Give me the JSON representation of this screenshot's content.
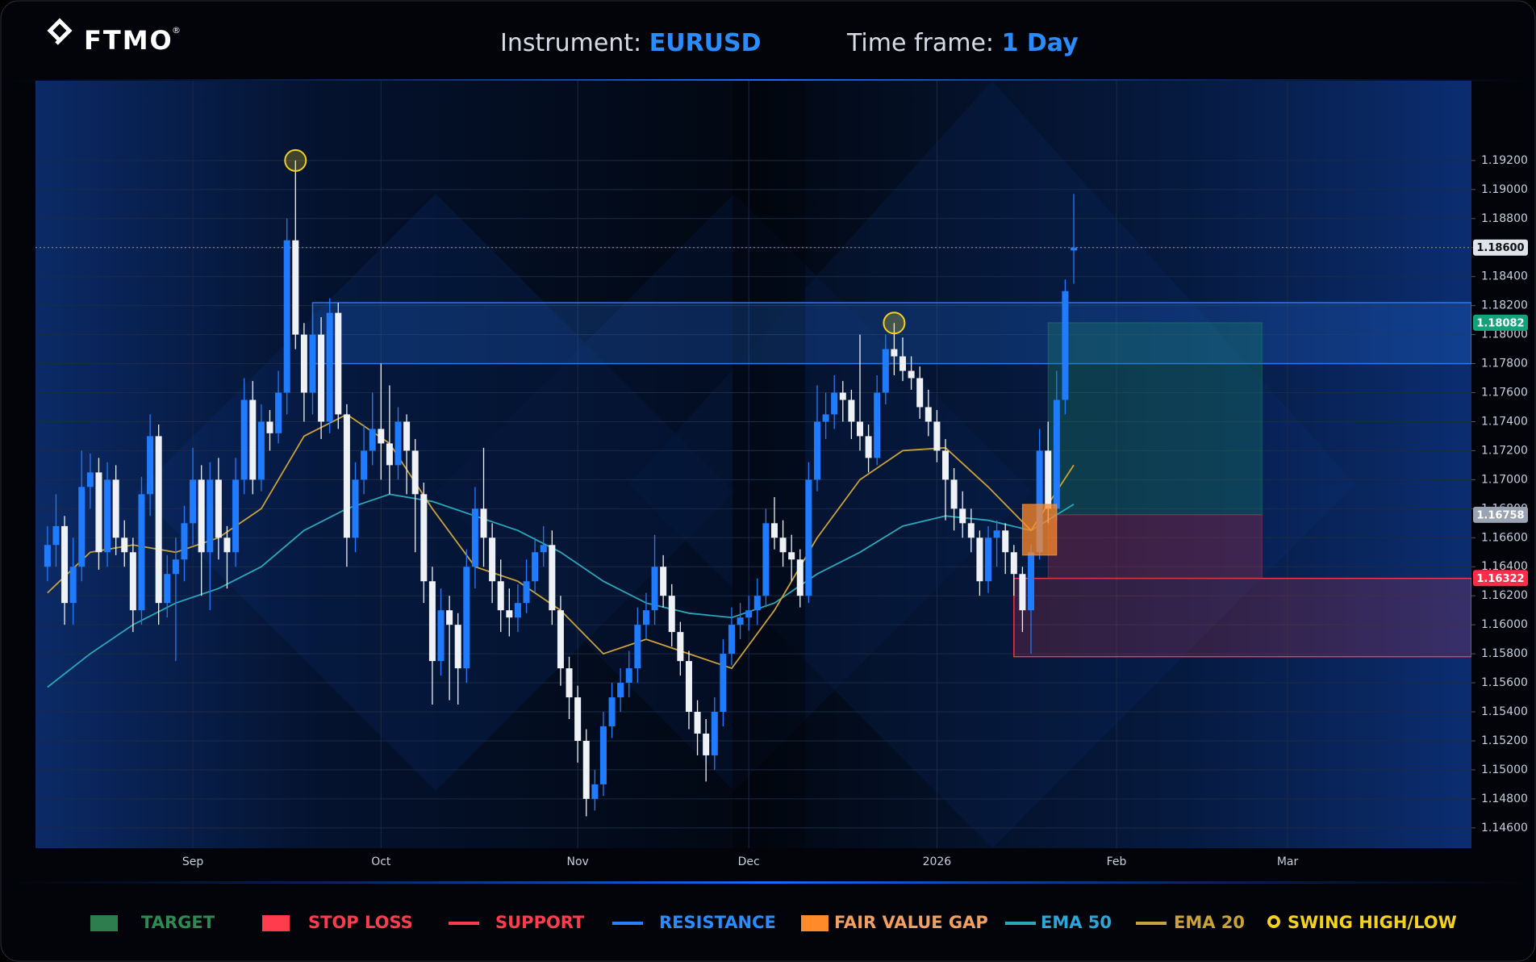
{
  "header": {
    "logo": "FTMO",
    "registered": "®",
    "instrument_label": "Instrument:",
    "instrument": "EURUSD",
    "timeframe_label": "Time frame:",
    "timeframe": "1 Day"
  },
  "chart_data": {
    "type": "candlestick",
    "xlim": [
      -1.4,
      166.5
    ],
    "xticks": [
      {
        "value": 17,
        "label": "Sep"
      },
      {
        "value": 39,
        "label": "Oct"
      },
      {
        "value": 62,
        "label": "Nov"
      },
      {
        "value": 82,
        "label": "Dec"
      },
      {
        "value": 104,
        "label": "2026"
      },
      {
        "value": 125,
        "label": "Feb"
      },
      {
        "value": 145,
        "label": "Mar"
      }
    ],
    "ylim": [
      1.1446,
      1.1975
    ],
    "yticks": [
      {
        "value": 1.146,
        "label": "1.14600"
      },
      {
        "value": 1.148,
        "label": "1.14800"
      },
      {
        "value": 1.15,
        "label": "1.15000"
      },
      {
        "value": 1.152,
        "label": "1.15200"
      },
      {
        "value": 1.154,
        "label": "1.15400"
      },
      {
        "value": 1.156,
        "label": "1.15600"
      },
      {
        "value": 1.158,
        "label": "1.15800"
      },
      {
        "value": 1.16,
        "label": "1.16000"
      },
      {
        "value": 1.162,
        "label": "1.16200"
      },
      {
        "value": 1.164,
        "label": "1.16400"
      },
      {
        "value": 1.166,
        "label": "1.16600"
      },
      {
        "value": 1.168,
        "label": "1.16800"
      },
      {
        "value": 1.17,
        "label": "1.17000"
      },
      {
        "value": 1.172,
        "label": "1.17200"
      },
      {
        "value": 1.174,
        "label": "1.17400"
      },
      {
        "value": 1.176,
        "label": "1.17600"
      },
      {
        "value": 1.178,
        "label": "1.17800"
      },
      {
        "value": 1.18,
        "label": "1.18000"
      },
      {
        "value": 1.182,
        "label": "1.18200"
      },
      {
        "value": 1.184,
        "label": "1.18400"
      },
      {
        "value": 1.186,
        "label": "1.18600"
      },
      {
        "value": 1.188,
        "label": "1.18800"
      },
      {
        "value": 1.19,
        "label": "1.19000"
      },
      {
        "value": 1.192,
        "label": "1.19200"
      }
    ],
    "grid": true,
    "up_color": "#1f7bff",
    "down_color": "#eef1f6",
    "candles": {
      "open": [
        1.164,
        1.1655,
        1.1668,
        1.1615,
        1.164,
        1.1695,
        1.1705,
        1.165,
        1.17,
        1.166,
        1.165,
        1.161,
        1.169,
        1.173,
        1.1615,
        1.1635,
        1.1645,
        1.167,
        1.17,
        1.165,
        1.17,
        1.166,
        1.165,
        1.17,
        1.1755,
        1.17,
        1.174,
        1.1732,
        1.176,
        1.1865,
        1.18,
        1.176,
        1.18,
        1.174,
        1.1815,
        1.1745,
        1.166,
        1.17,
        1.172,
        1.1735,
        1.1725,
        1.171,
        1.174,
        1.172,
        1.169,
        1.163,
        1.1575,
        1.161,
        1.16,
        1.157,
        1.164,
        1.168,
        1.166,
        1.163,
        1.161,
        1.1605,
        1.1615,
        1.163,
        1.165,
        1.1655,
        1.161,
        1.157,
        1.155,
        1.152,
        1.148,
        1.149,
        1.153,
        1.155,
        1.156,
        1.157,
        1.16,
        1.161,
        1.164,
        1.162,
        1.1595,
        1.1575,
        1.154,
        1.1525,
        1.151,
        1.154,
        1.158,
        1.16,
        1.1605,
        1.161,
        1.162,
        1.167,
        1.166,
        1.165,
        1.1645,
        1.162,
        1.17,
        1.174,
        1.1745,
        1.176,
        1.1755,
        1.174,
        1.173,
        1.1715,
        1.176,
        1.179,
        1.1785,
        1.1775,
        1.177,
        1.175,
        1.174,
        1.172,
        1.17,
        1.168,
        1.167,
        1.166,
        1.163,
        1.166,
        1.1665,
        1.165,
        1.1635,
        1.161,
        1.165,
        1.172,
        1.168,
        1.1755,
        1.1858
      ],
      "high": [
        1.1668,
        1.169,
        1.1675,
        1.166,
        1.172,
        1.1718,
        1.1715,
        1.1712,
        1.171,
        1.1672,
        1.166,
        1.1702,
        1.1745,
        1.1738,
        1.1648,
        1.166,
        1.1682,
        1.1722,
        1.171,
        1.1712,
        1.1715,
        1.1668,
        1.1715,
        1.177,
        1.1768,
        1.1752,
        1.1748,
        1.1775,
        1.188,
        1.192,
        1.1808,
        1.1815,
        1.1812,
        1.1825,
        1.1822,
        1.1752,
        1.1712,
        1.1738,
        1.176,
        1.178,
        1.1765,
        1.175,
        1.1745,
        1.1728,
        1.1698,
        1.164,
        1.1625,
        1.162,
        1.1608,
        1.1652,
        1.1695,
        1.1722,
        1.167,
        1.1645,
        1.1625,
        1.1628,
        1.1645,
        1.166,
        1.1668,
        1.1665,
        1.162,
        1.1578,
        1.1558,
        1.1528,
        1.15,
        1.154,
        1.156,
        1.157,
        1.1582,
        1.1612,
        1.1622,
        1.1662,
        1.1648,
        1.1628,
        1.1602,
        1.1582,
        1.1548,
        1.1535,
        1.155,
        1.159,
        1.1612,
        1.1615,
        1.162,
        1.1632,
        1.168,
        1.1688,
        1.1672,
        1.1662,
        1.1652,
        1.1712,
        1.1765,
        1.176,
        1.1772,
        1.1768,
        1.1762,
        1.18,
        1.1738,
        1.1772,
        1.18,
        1.1808,
        1.1798,
        1.1785,
        1.1778,
        1.1762,
        1.1748,
        1.1728,
        1.1708,
        1.1692,
        1.168,
        1.1665,
        1.1668,
        1.1672,
        1.167,
        1.1655,
        1.164,
        1.1655,
        1.1735,
        1.174,
        1.1775,
        1.1838,
        1.1897
      ],
      "low": [
        1.163,
        1.164,
        1.16,
        1.16,
        1.163,
        1.168,
        1.1638,
        1.164,
        1.1648,
        1.164,
        1.1595,
        1.16,
        1.1675,
        1.16,
        1.1605,
        1.1575,
        1.163,
        1.1655,
        1.162,
        1.161,
        1.1645,
        1.1625,
        1.164,
        1.169,
        1.169,
        1.1692,
        1.172,
        1.1725,
        1.1745,
        1.179,
        1.174,
        1.1745,
        1.1728,
        1.1732,
        1.1735,
        1.164,
        1.165,
        1.169,
        1.171,
        1.17,
        1.169,
        1.17,
        1.169,
        1.165,
        1.1615,
        1.1545,
        1.1565,
        1.1548,
        1.1545,
        1.156,
        1.1625,
        1.164,
        1.1615,
        1.1595,
        1.1592,
        1.1595,
        1.1608,
        1.1622,
        1.164,
        1.16,
        1.1558,
        1.1535,
        1.1505,
        1.1468,
        1.1472,
        1.1482,
        1.1522,
        1.154,
        1.155,
        1.156,
        1.159,
        1.16,
        1.1612,
        1.1585,
        1.1565,
        1.1528,
        1.151,
        1.1492,
        1.15,
        1.153,
        1.1572,
        1.159,
        1.1596,
        1.16,
        1.1612,
        1.1652,
        1.164,
        1.163,
        1.1612,
        1.1615,
        1.1692,
        1.1728,
        1.1735,
        1.174,
        1.1728,
        1.172,
        1.1705,
        1.171,
        1.1752,
        1.1772,
        1.1768,
        1.1762,
        1.1742,
        1.173,
        1.1712,
        1.1672,
        1.1665,
        1.166,
        1.165,
        1.162,
        1.1622,
        1.164,
        1.1635,
        1.162,
        1.1595,
        1.158,
        1.1645,
        1.167,
        1.1672,
        1.1745,
        1.1835
      ],
      "close": [
        1.1655,
        1.1668,
        1.1615,
        1.164,
        1.1695,
        1.1705,
        1.165,
        1.17,
        1.166,
        1.165,
        1.161,
        1.169,
        1.173,
        1.1615,
        1.1635,
        1.1645,
        1.167,
        1.17,
        1.165,
        1.17,
        1.166,
        1.165,
        1.17,
        1.1755,
        1.17,
        1.174,
        1.1732,
        1.176,
        1.1865,
        1.18,
        1.176,
        1.18,
        1.174,
        1.1815,
        1.1745,
        1.166,
        1.17,
        1.172,
        1.1735,
        1.1725,
        1.171,
        1.174,
        1.172,
        1.169,
        1.163,
        1.1575,
        1.161,
        1.16,
        1.157,
        1.164,
        1.168,
        1.166,
        1.163,
        1.161,
        1.1605,
        1.1615,
        1.163,
        1.165,
        1.1655,
        1.161,
        1.157,
        1.155,
        1.152,
        1.148,
        1.149,
        1.153,
        1.155,
        1.156,
        1.157,
        1.16,
        1.161,
        1.164,
        1.162,
        1.1595,
        1.1575,
        1.154,
        1.1525,
        1.151,
        1.154,
        1.158,
        1.16,
        1.1605,
        1.161,
        1.162,
        1.167,
        1.166,
        1.165,
        1.1645,
        1.162,
        1.17,
        1.174,
        1.1745,
        1.176,
        1.1755,
        1.174,
        1.173,
        1.1715,
        1.176,
        1.179,
        1.1785,
        1.1775,
        1.177,
        1.175,
        1.174,
        1.172,
        1.17,
        1.168,
        1.167,
        1.166,
        1.163,
        1.166,
        1.1665,
        1.165,
        1.1635,
        1.161,
        1.165,
        1.172,
        1.168,
        1.1755,
        1.183,
        1.186
      ]
    },
    "ema": [
      {
        "name": "EMA 50",
        "color": "#2aa7b8",
        "x": [
          0,
          5,
          10,
          15,
          20,
          25,
          30,
          35,
          40,
          45,
          50,
          55,
          60,
          65,
          70,
          75,
          80,
          85,
          90,
          95,
          100,
          105,
          110,
          115,
          120
        ],
        "values": [
          1.1557,
          1.158,
          1.16,
          1.1615,
          1.1625,
          1.164,
          1.1665,
          1.168,
          1.169,
          1.1685,
          1.1675,
          1.1665,
          1.165,
          1.163,
          1.1615,
          1.1608,
          1.1605,
          1.1615,
          1.1635,
          1.165,
          1.1668,
          1.1675,
          1.1672,
          1.1665,
          1.1683
        ]
      },
      {
        "name": "EMA 20",
        "color": "#c9a23a",
        "x": [
          0,
          5,
          10,
          15,
          20,
          25,
          30,
          35,
          40,
          45,
          50,
          55,
          60,
          65,
          70,
          75,
          80,
          85,
          90,
          95,
          100,
          105,
          110,
          115,
          120
        ],
        "values": [
          1.1622,
          1.165,
          1.1655,
          1.165,
          1.166,
          1.168,
          1.173,
          1.1745,
          1.1725,
          1.168,
          1.164,
          1.163,
          1.161,
          1.158,
          1.159,
          1.158,
          1.157,
          1.161,
          1.166,
          1.17,
          1.172,
          1.1722,
          1.1695,
          1.1665,
          1.171
        ]
      }
    ],
    "resistance": {
      "color": "#2a7fff",
      "x": [
        31,
        166.5
      ],
      "y": [
        1.178,
        1.1822
      ]
    },
    "support": {
      "color": "#ff3b4e",
      "x": [
        113,
        166.5
      ],
      "y": [
        1.1578,
        1.1632
      ]
    },
    "target": {
      "color": "#1f8a6a",
      "x": [
        117,
        142
      ],
      "y": [
        1.16758,
        1.18082
      ]
    },
    "stop_loss": {
      "color": "#c0304a",
      "x": [
        117,
        142
      ],
      "y": [
        1.16322,
        1.16758
      ]
    },
    "fair_value_gap": {
      "color": "#ff8a2a",
      "x": [
        114,
        118
      ],
      "y": [
        1.1648,
        1.1683
      ]
    },
    "swing_points": {
      "color": "#f2d21b",
      "x": [
        29,
        99
      ],
      "y": [
        1.192,
        1.1808
      ]
    },
    "price_labels": [
      {
        "value": 1.186,
        "label": "1.18600",
        "color": "#dfe3ea"
      },
      {
        "value": 1.18082,
        "label": "1.18082",
        "color": "#12a37a"
      },
      {
        "value": 1.16758,
        "label": "1.16758",
        "color": "#9aa3b2"
      },
      {
        "value": 1.16322,
        "label": "1.16322",
        "color": "#ff2d4a"
      }
    ],
    "legend": [
      {
        "name": "TARGET",
        "color": "#2e7d4f",
        "text_color": "#2e8a55",
        "kind": "box"
      },
      {
        "name": "STOP LOSS",
        "color": "#ff3b4e",
        "text_color": "#ff3b4e",
        "kind": "box"
      },
      {
        "name": "SUPPORT",
        "color": "#ff3b4e",
        "text_color": "#ff3b4e",
        "kind": "line"
      },
      {
        "name": "RESISTANCE",
        "color": "#2a7fff",
        "text_color": "#2a8cff",
        "kind": "line"
      },
      {
        "name": "FAIR VALUE GAP",
        "color": "#ff8a2a",
        "text_color": "#f0a060",
        "kind": "box"
      },
      {
        "name": "EMA 50",
        "color": "#2aa7b8",
        "text_color": "#2aa7d8",
        "kind": "line"
      },
      {
        "name": "EMA 20",
        "color": "#c9a23a",
        "text_color": "#c9a23a",
        "kind": "line"
      },
      {
        "name": "SWING HIGH/LOW",
        "color": "#f2d21b",
        "text_color": "#f2d21b",
        "kind": "dot"
      }
    ]
  }
}
